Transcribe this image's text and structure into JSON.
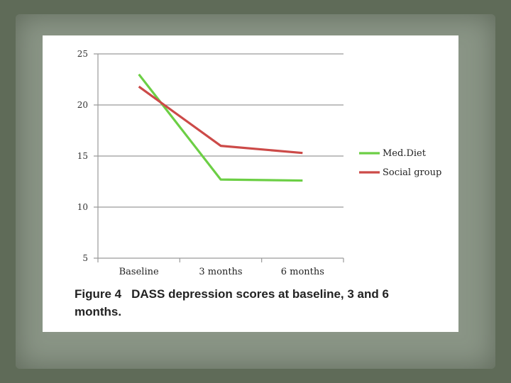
{
  "chart_data": {
    "type": "line",
    "categories": [
      "Baseline",
      "3 months",
      "6 months"
    ],
    "series": [
      {
        "name": "Med.Diet",
        "values": [
          23,
          12.7,
          12.6
        ],
        "color": "#6ccf45"
      },
      {
        "name": "Social group",
        "values": [
          21.8,
          16,
          15.3
        ],
        "color": "#cc4a48"
      }
    ],
    "yticks": [
      5,
      10,
      15,
      20,
      25
    ],
    "ylim": [
      5,
      25
    ],
    "grid": true,
    "legend": "right"
  },
  "caption": {
    "figure_number": "Figure 4",
    "text": "DASS depression scores at baseline, 3 and 6 months."
  }
}
